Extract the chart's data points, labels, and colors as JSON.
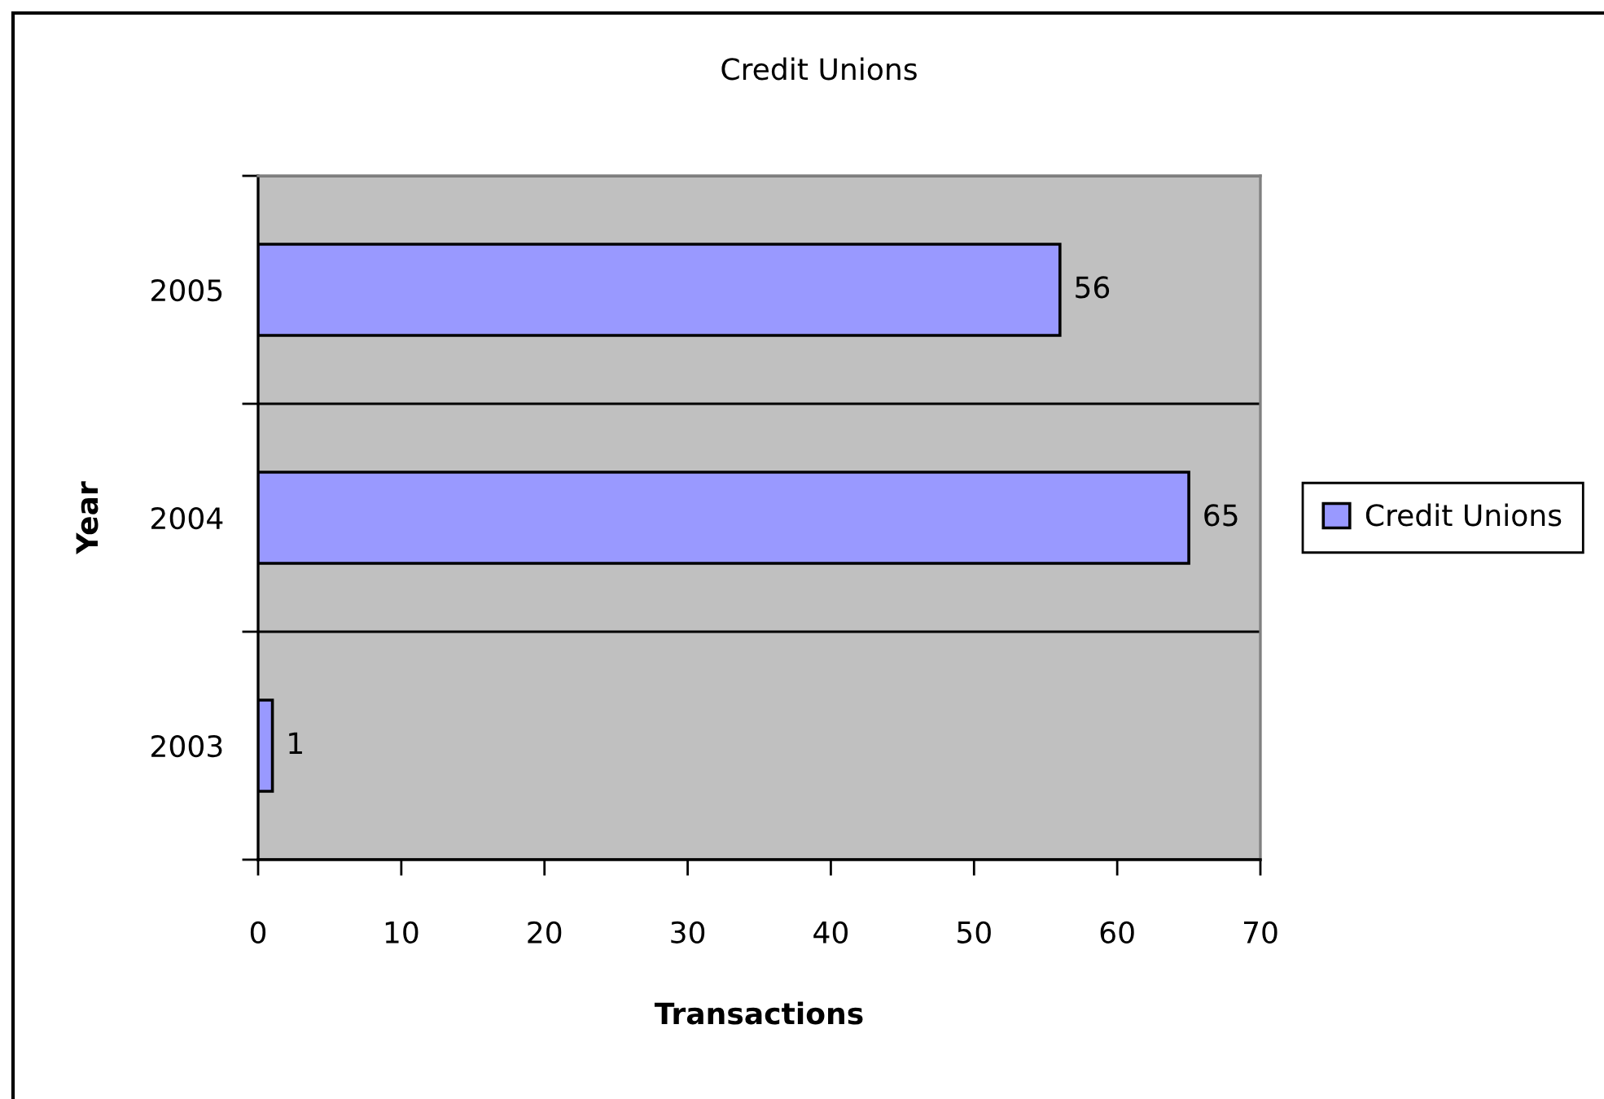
{
  "chart_data": {
    "type": "bar",
    "orientation": "horizontal",
    "title": "Credit Unions",
    "xlabel": "Transactions",
    "ylabel": "Year",
    "categories": [
      "2005",
      "2004",
      "2003"
    ],
    "series": [
      {
        "name": "Credit Unions",
        "color": "#9999ff",
        "values": [
          56,
          65,
          1
        ]
      }
    ],
    "xlim": [
      0,
      70
    ],
    "xticks": [
      0,
      10,
      20,
      30,
      40,
      50,
      60,
      70
    ],
    "grid": "y",
    "legend": "right",
    "data_labels": true
  }
}
